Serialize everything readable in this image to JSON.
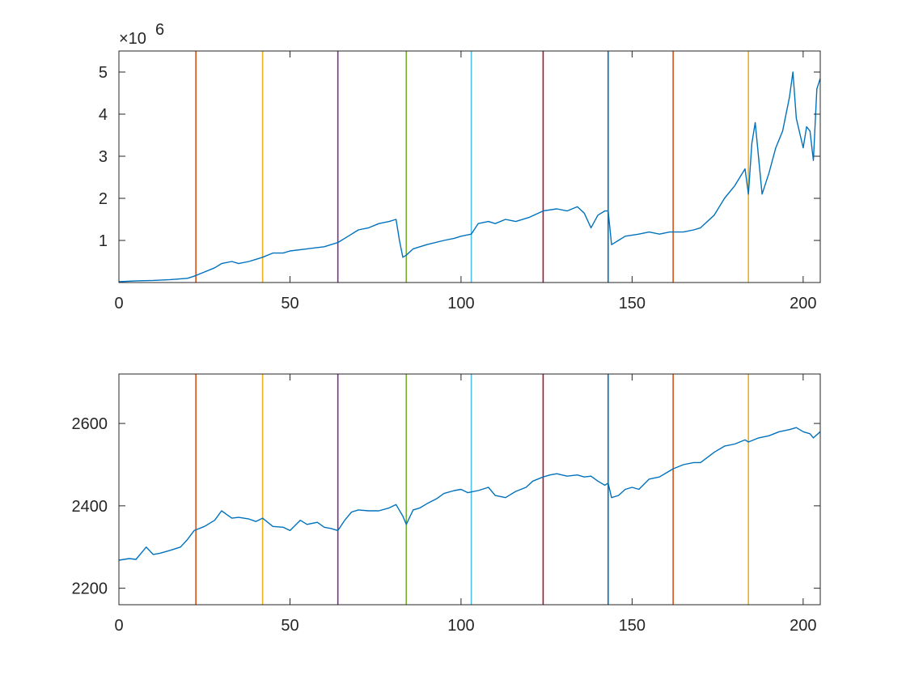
{
  "chart_data": [
    {
      "type": "line",
      "title": "",
      "xlabel": "",
      "ylabel": "",
      "exponent_label": "×10",
      "exponent_power": "6",
      "xlim": [
        0,
        205
      ],
      "ylim": [
        0,
        5.5
      ],
      "xticks": [
        0,
        50,
        100,
        150,
        200
      ],
      "yticks": [
        1,
        2,
        3,
        4,
        5
      ],
      "ytick_labels": [
        "1",
        "2",
        "3",
        "4",
        "5"
      ],
      "grid": false,
      "series": [
        {
          "color": "#0072BD",
          "x": [
            0,
            5,
            10,
            15,
            20,
            22,
            25,
            28,
            30,
            33,
            35,
            38,
            40,
            42,
            45,
            48,
            50,
            55,
            60,
            64,
            67,
            70,
            73,
            76,
            79,
            81,
            82,
            83,
            84,
            86,
            90,
            95,
            98,
            100,
            103,
            105,
            108,
            110,
            113,
            116,
            120,
            124,
            128,
            131,
            134,
            136,
            138,
            140,
            142,
            143,
            144,
            148,
            152,
            155,
            158,
            161,
            162,
            165,
            168,
            170,
            174,
            177,
            180,
            183,
            184,
            185,
            186,
            188,
            190,
            192,
            194,
            196,
            197,
            198,
            200,
            201,
            202,
            203,
            204,
            205
          ],
          "y": [
            0.02,
            0.04,
            0.05,
            0.07,
            0.1,
            0.15,
            0.25,
            0.35,
            0.45,
            0.5,
            0.45,
            0.5,
            0.55,
            0.6,
            0.7,
            0.7,
            0.75,
            0.8,
            0.85,
            0.95,
            1.1,
            1.25,
            1.3,
            1.4,
            1.45,
            1.5,
            1.0,
            0.6,
            0.65,
            0.8,
            0.9,
            1.0,
            1.05,
            1.1,
            1.15,
            1.4,
            1.45,
            1.4,
            1.5,
            1.45,
            1.55,
            1.7,
            1.75,
            1.7,
            1.8,
            1.65,
            1.3,
            1.6,
            1.7,
            1.7,
            0.9,
            1.1,
            1.15,
            1.2,
            1.15,
            1.2,
            1.2,
            1.2,
            1.25,
            1.3,
            1.6,
            2.0,
            2.3,
            2.7,
            2.1,
            3.3,
            3.8,
            2.1,
            2.6,
            3.2,
            3.6,
            4.4,
            5.0,
            3.9,
            3.2,
            3.7,
            3.6,
            2.9,
            4.6,
            4.85
          ]
        }
      ],
      "markers": {
        "x": [
          22.5,
          42,
          64,
          84,
          103,
          124,
          143,
          162,
          184
        ],
        "colors": [
          "#D95319",
          "#EDB120",
          "#7E2F8E",
          "#77AC30",
          "#4DBEEE",
          "#A2142F",
          "#0072BD",
          "#D95319",
          "#EDB120"
        ]
      }
    },
    {
      "type": "line",
      "title": "",
      "xlabel": "",
      "ylabel": "",
      "xlim": [
        0,
        205
      ],
      "ylim": [
        2160,
        2720
      ],
      "xticks": [
        0,
        50,
        100,
        150,
        200
      ],
      "yticks": [
        2200,
        2400,
        2600
      ],
      "ytick_labels": [
        "2200",
        "2400",
        "2600"
      ],
      "grid": false,
      "series": [
        {
          "color": "#0072BD",
          "x": [
            0,
            3,
            5,
            8,
            10,
            12,
            15,
            18,
            20,
            22,
            25,
            28,
            30,
            33,
            35,
            38,
            40,
            42,
            45,
            48,
            50,
            53,
            55,
            58,
            60,
            62,
            64,
            66,
            68,
            70,
            73,
            76,
            79,
            81,
            83,
            84,
            86,
            88,
            90,
            93,
            95,
            98,
            100,
            102,
            105,
            108,
            110,
            113,
            116,
            119,
            121,
            124,
            126,
            128,
            131,
            134,
            136,
            138,
            140,
            142,
            143,
            144,
            146,
            148,
            150,
            152,
            155,
            158,
            160,
            162,
            165,
            168,
            170,
            174,
            177,
            180,
            183,
            184,
            187,
            190,
            193,
            196,
            198,
            200,
            202,
            203,
            205
          ],
          "y": [
            2268,
            2272,
            2270,
            2300,
            2282,
            2285,
            2292,
            2300,
            2318,
            2340,
            2350,
            2365,
            2388,
            2370,
            2372,
            2368,
            2362,
            2370,
            2350,
            2348,
            2340,
            2365,
            2355,
            2360,
            2348,
            2345,
            2340,
            2365,
            2385,
            2390,
            2388,
            2388,
            2395,
            2403,
            2375,
            2355,
            2390,
            2395,
            2405,
            2418,
            2430,
            2437,
            2440,
            2432,
            2437,
            2445,
            2425,
            2420,
            2435,
            2445,
            2460,
            2470,
            2475,
            2478,
            2472,
            2475,
            2470,
            2472,
            2460,
            2450,
            2455,
            2420,
            2425,
            2440,
            2445,
            2440,
            2465,
            2470,
            2480,
            2490,
            2500,
            2505,
            2505,
            2530,
            2545,
            2550,
            2560,
            2555,
            2565,
            2570,
            2580,
            2585,
            2590,
            2580,
            2575,
            2565,
            2580
          ]
        }
      ],
      "markers": {
        "x": [
          22.5,
          42,
          64,
          84,
          103,
          124,
          143,
          162,
          184
        ],
        "colors": [
          "#D95319",
          "#EDB120",
          "#7E2F8E",
          "#77AC30",
          "#4DBEEE",
          "#A2142F",
          "#0072BD",
          "#D95319",
          "#EDB120"
        ]
      }
    }
  ]
}
